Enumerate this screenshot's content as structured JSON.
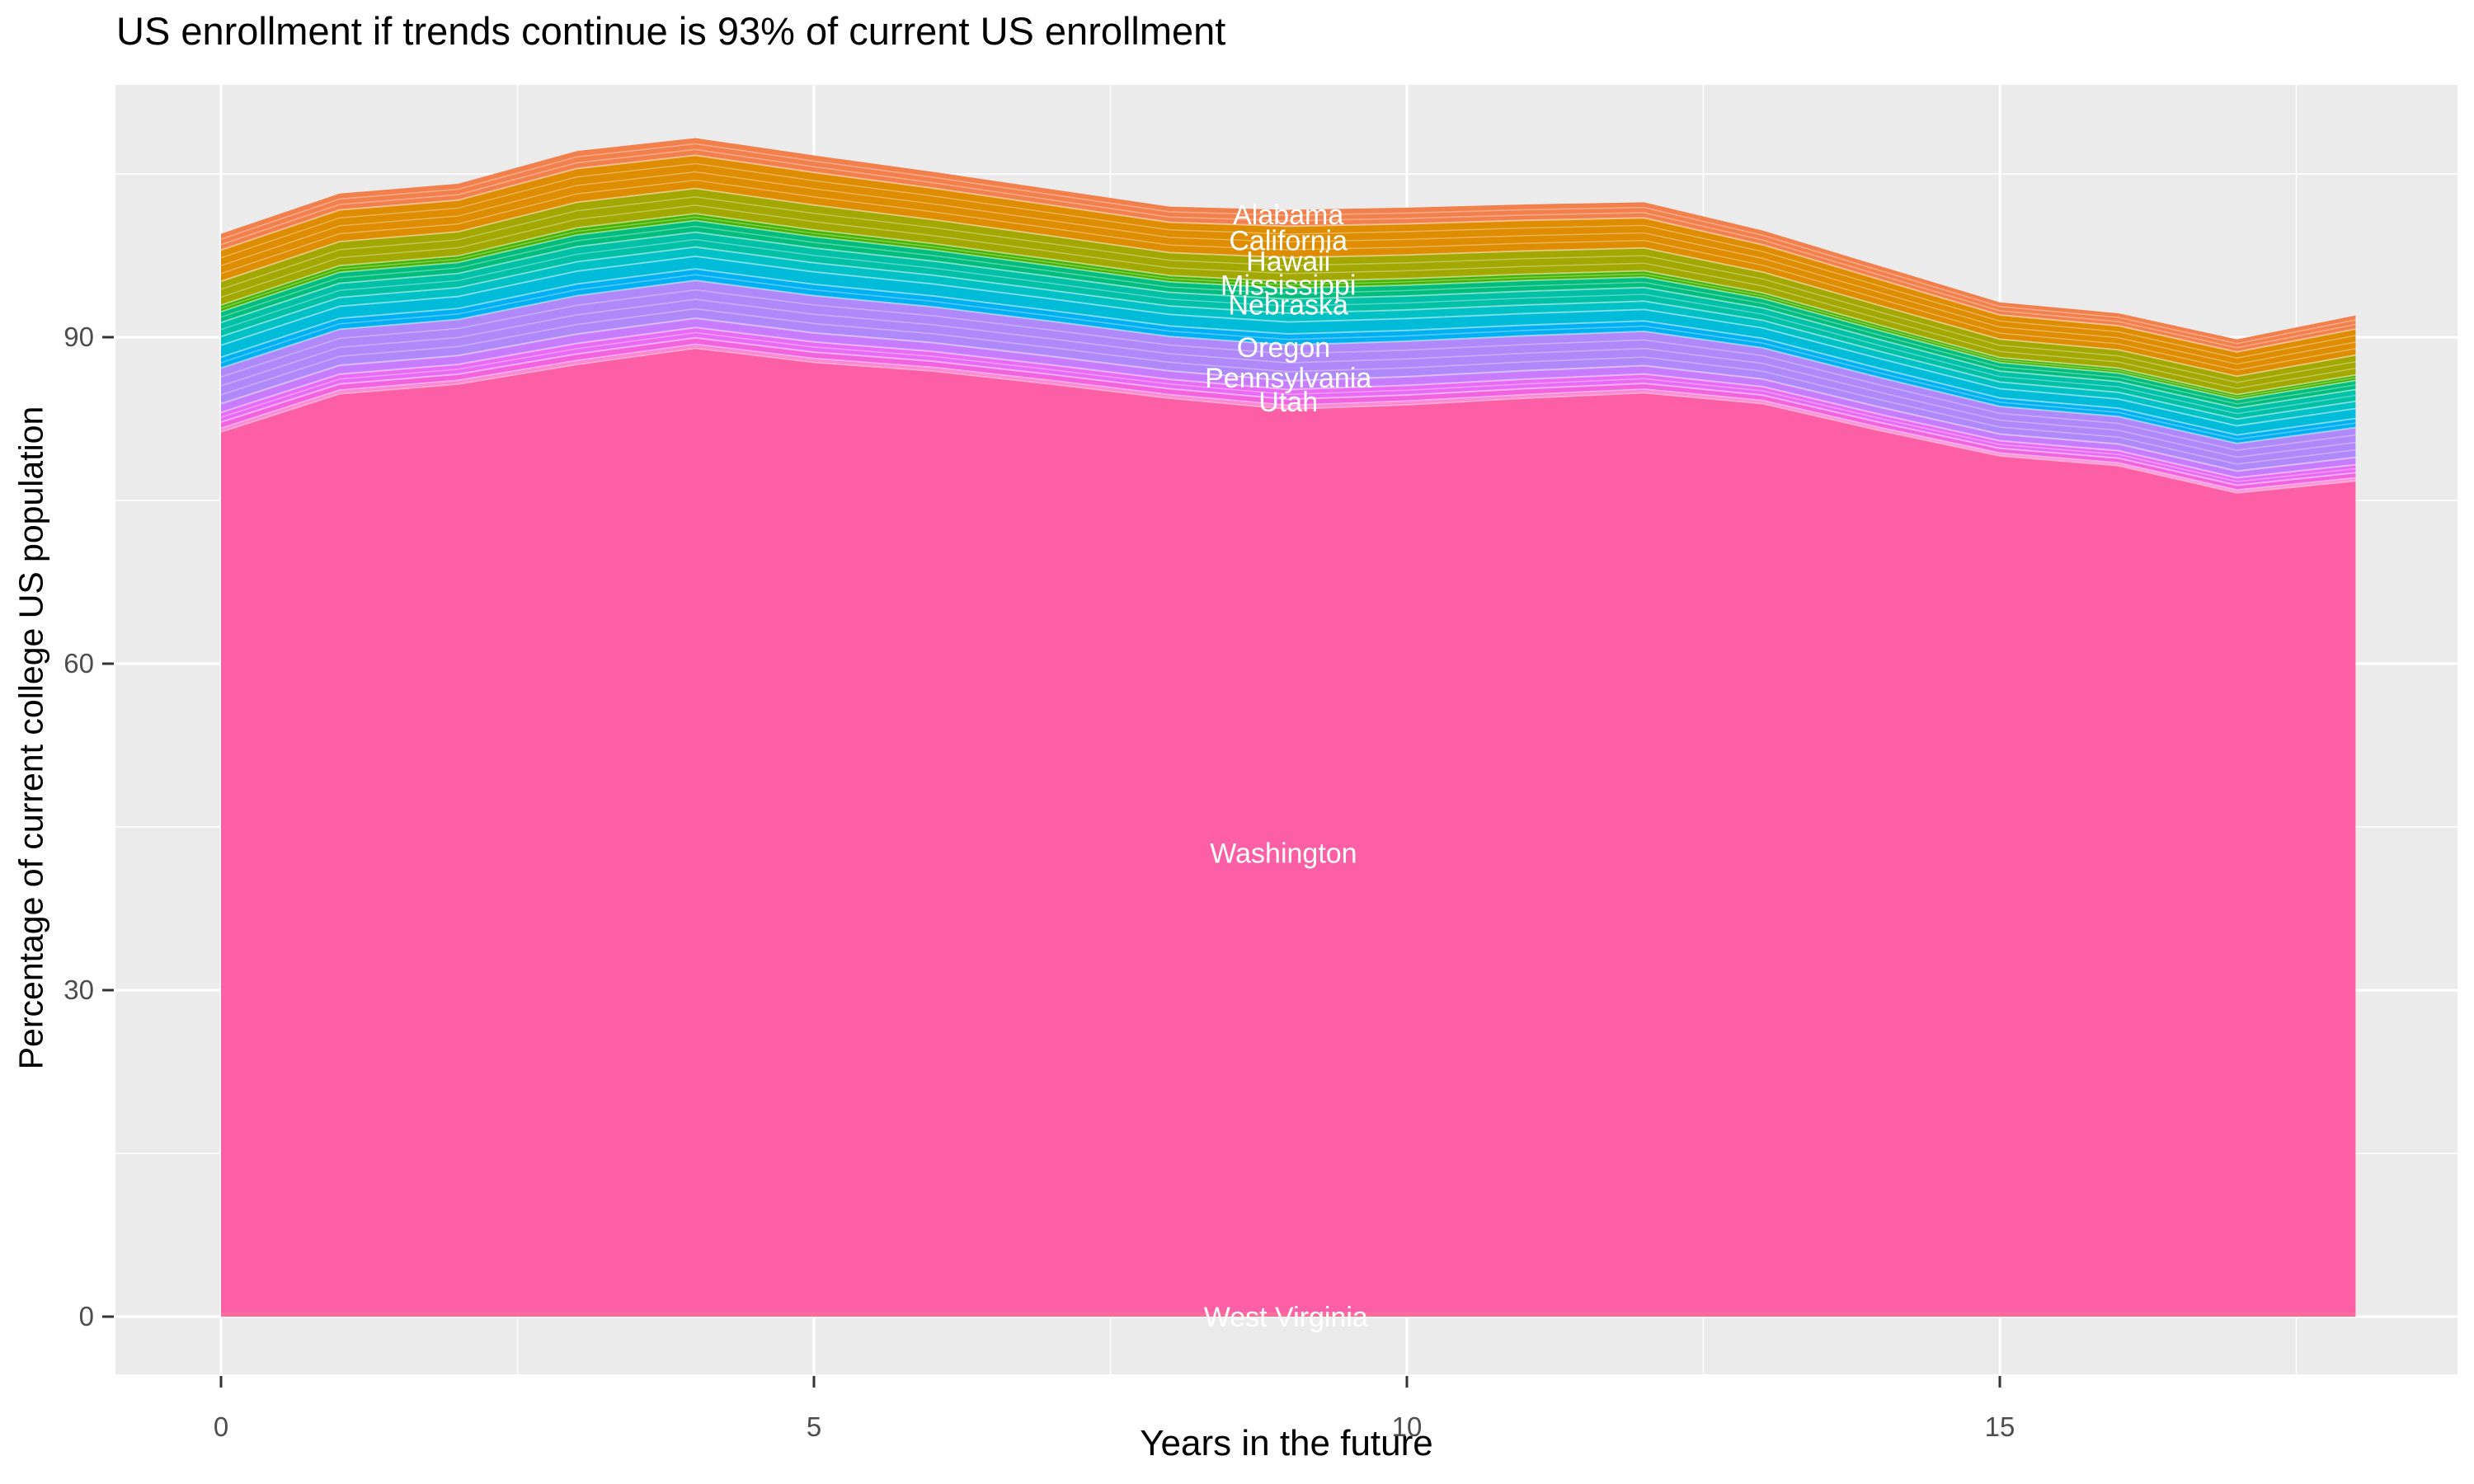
{
  "title": "US enrollment if trends continue is 93% of current US enrollment",
  "x_axis": {
    "title": "Years in the future",
    "tick_labels": [
      "0",
      "5",
      "10",
      "15"
    ],
    "tick_values": [
      0,
      5,
      10,
      15
    ],
    "minor_tick_values": [
      2.5,
      7.5,
      12.5,
      17.5
    ],
    "range": [
      0,
      18
    ]
  },
  "y_axis": {
    "title": "Percentage of current college US population",
    "tick_labels": [
      "0",
      "30",
      "60",
      "90"
    ],
    "tick_values": [
      0,
      30,
      60,
      90
    ],
    "minor_tick_values": [
      15,
      45,
      75,
      105
    ]
  },
  "colors": {
    "panel_background": "#EBEBEB",
    "gridline": "#FFFFFF",
    "tick_mark": "#333333",
    "tick_label": "#4D4D4D",
    "title_text": "#000000",
    "state_label_text": "#FFFFFF"
  },
  "chart_data": {
    "type": "area",
    "title": "US enrollment if trends continue is 93% of current US enrollment",
    "xlabel": "Years in the future",
    "ylabel": "Percentage of current college US population",
    "stacking": "stacked areas of US states, reverse-alphabetical bottom to top, labels shown for 10 states",
    "grid": true,
    "legend": false,
    "x": [
      0,
      1,
      2,
      3,
      4,
      5,
      6,
      7,
      8,
      9,
      10,
      11,
      12,
      13,
      14,
      15,
      16,
      17,
      18
    ],
    "total_top": [
      99.5,
      103.2,
      104.1,
      107.1,
      108.3,
      106.7,
      105.2,
      103.6,
      102.0,
      101.7,
      101.9,
      102.2,
      102.4,
      99.8,
      96.5,
      93.2,
      92.2,
      89.8,
      92.0
    ],
    "washington_top": [
      81.3,
      84.8,
      85.7,
      87.5,
      89.0,
      87.7,
      86.9,
      85.7,
      84.4,
      83.4,
      83.8,
      84.4,
      84.9,
      83.9,
      81.4,
      79.1,
      78.2,
      75.7,
      76.8
    ],
    "west_virginia_thickness": 0.35,
    "bottom_bands": [
      {
        "label": "West Virginia",
        "color": "#FF6B96"
      },
      {
        "label": "Washington",
        "color": "#FC5FA6"
      }
    ],
    "upper_bands_bottom_to_top": [
      {
        "label": "",
        "color": "#FB5FC6",
        "fraction": 0.018,
        "sublines": 2
      },
      {
        "label": "Utah",
        "color": "#F263E0",
        "fraction": 0.031,
        "sublines": 1
      },
      {
        "label": "",
        "color": "#E86BF5",
        "fraction": 0.049,
        "sublines": 2
      },
      {
        "label": "Pennsylvania",
        "color": "#C77CFF",
        "fraction": 0.044,
        "sublines": 1
      },
      {
        "label": "Oregon",
        "color": "#AF88FA",
        "fraction": 0.18,
        "sublines": 4
      },
      {
        "label": "",
        "color": "#00B0F2",
        "fraction": 0.055,
        "sublines": 2
      },
      {
        "label": "Nebraska",
        "color": "#00BCD9",
        "fraction": 0.06,
        "sublines": 1
      },
      {
        "label": "",
        "color": "#00C1C5",
        "fraction": 0.044,
        "sublines": 1
      },
      {
        "label": "Mississippi",
        "color": "#00C1A8",
        "fraction": 0.071,
        "sublines": 2
      },
      {
        "label": "",
        "color": "#00BD7E",
        "fraction": 0.055,
        "sublines": 2
      },
      {
        "label": "",
        "color": "#44B300",
        "fraction": 0.033,
        "sublines": 2
      },
      {
        "label": "Hawaii",
        "color": "#A2A800",
        "fraction": 0.12,
        "sublines": 3
      },
      {
        "label": "California",
        "color": "#DE8C00",
        "fraction": 0.158,
        "sublines": 4
      },
      {
        "label": "Alabama",
        "color": "#F1804D",
        "fraction": 0.082,
        "sublines": 3
      }
    ],
    "state_labels": [
      {
        "text": "Alabama",
        "x": 9.0,
        "y": 101.3
      },
      {
        "text": "California",
        "x": 9.0,
        "y": 98.9
      },
      {
        "text": "Hawaii",
        "x": 9.0,
        "y": 97.0
      },
      {
        "text": "Mississippi",
        "x": 9.0,
        "y": 94.8
      },
      {
        "text": "Nebraska",
        "x": 9.0,
        "y": 93.0
      },
      {
        "text": "Oregon",
        "x": 8.96,
        "y": 89.1
      },
      {
        "text": "Pennsylvania",
        "x": 9.0,
        "y": 86.3
      },
      {
        "text": "Utah",
        "x": 9.0,
        "y": 84.1
      },
      {
        "text": "Washington",
        "x": 8.96,
        "y": 42.6
      },
      {
        "text": "West Virginia",
        "x": 8.98,
        "y": 0.0
      }
    ]
  }
}
